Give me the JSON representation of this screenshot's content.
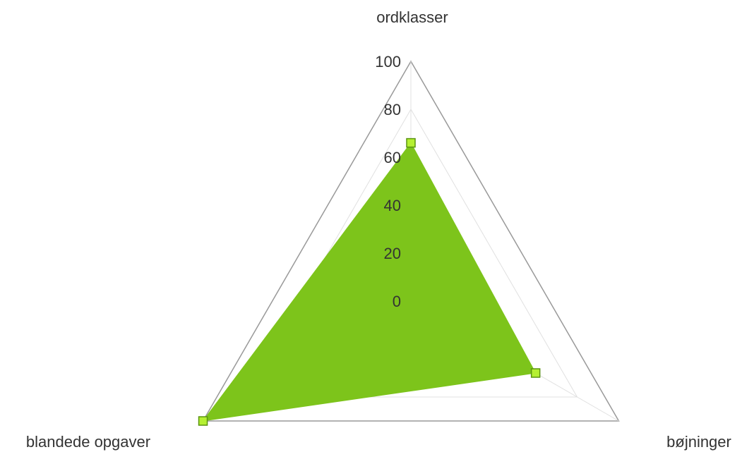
{
  "chart_data": {
    "type": "radar",
    "axes": [
      "ordklasser",
      "bøjninger",
      "blandede opgaver"
    ],
    "series": [
      {
        "values": [
          66,
          60,
          100
        ]
      }
    ],
    "ticks": [
      "0",
      "20",
      "40",
      "60",
      "80",
      "100"
    ],
    "range": [
      0,
      100
    ],
    "grid": true,
    "colors": {
      "fill": "#7dc41b",
      "marker_fill": "#b5f032",
      "marker_stroke": "#5a9410",
      "outer_grid": "#999999",
      "inner_grid": "#e0e0e0",
      "text": "#333333"
    }
  }
}
